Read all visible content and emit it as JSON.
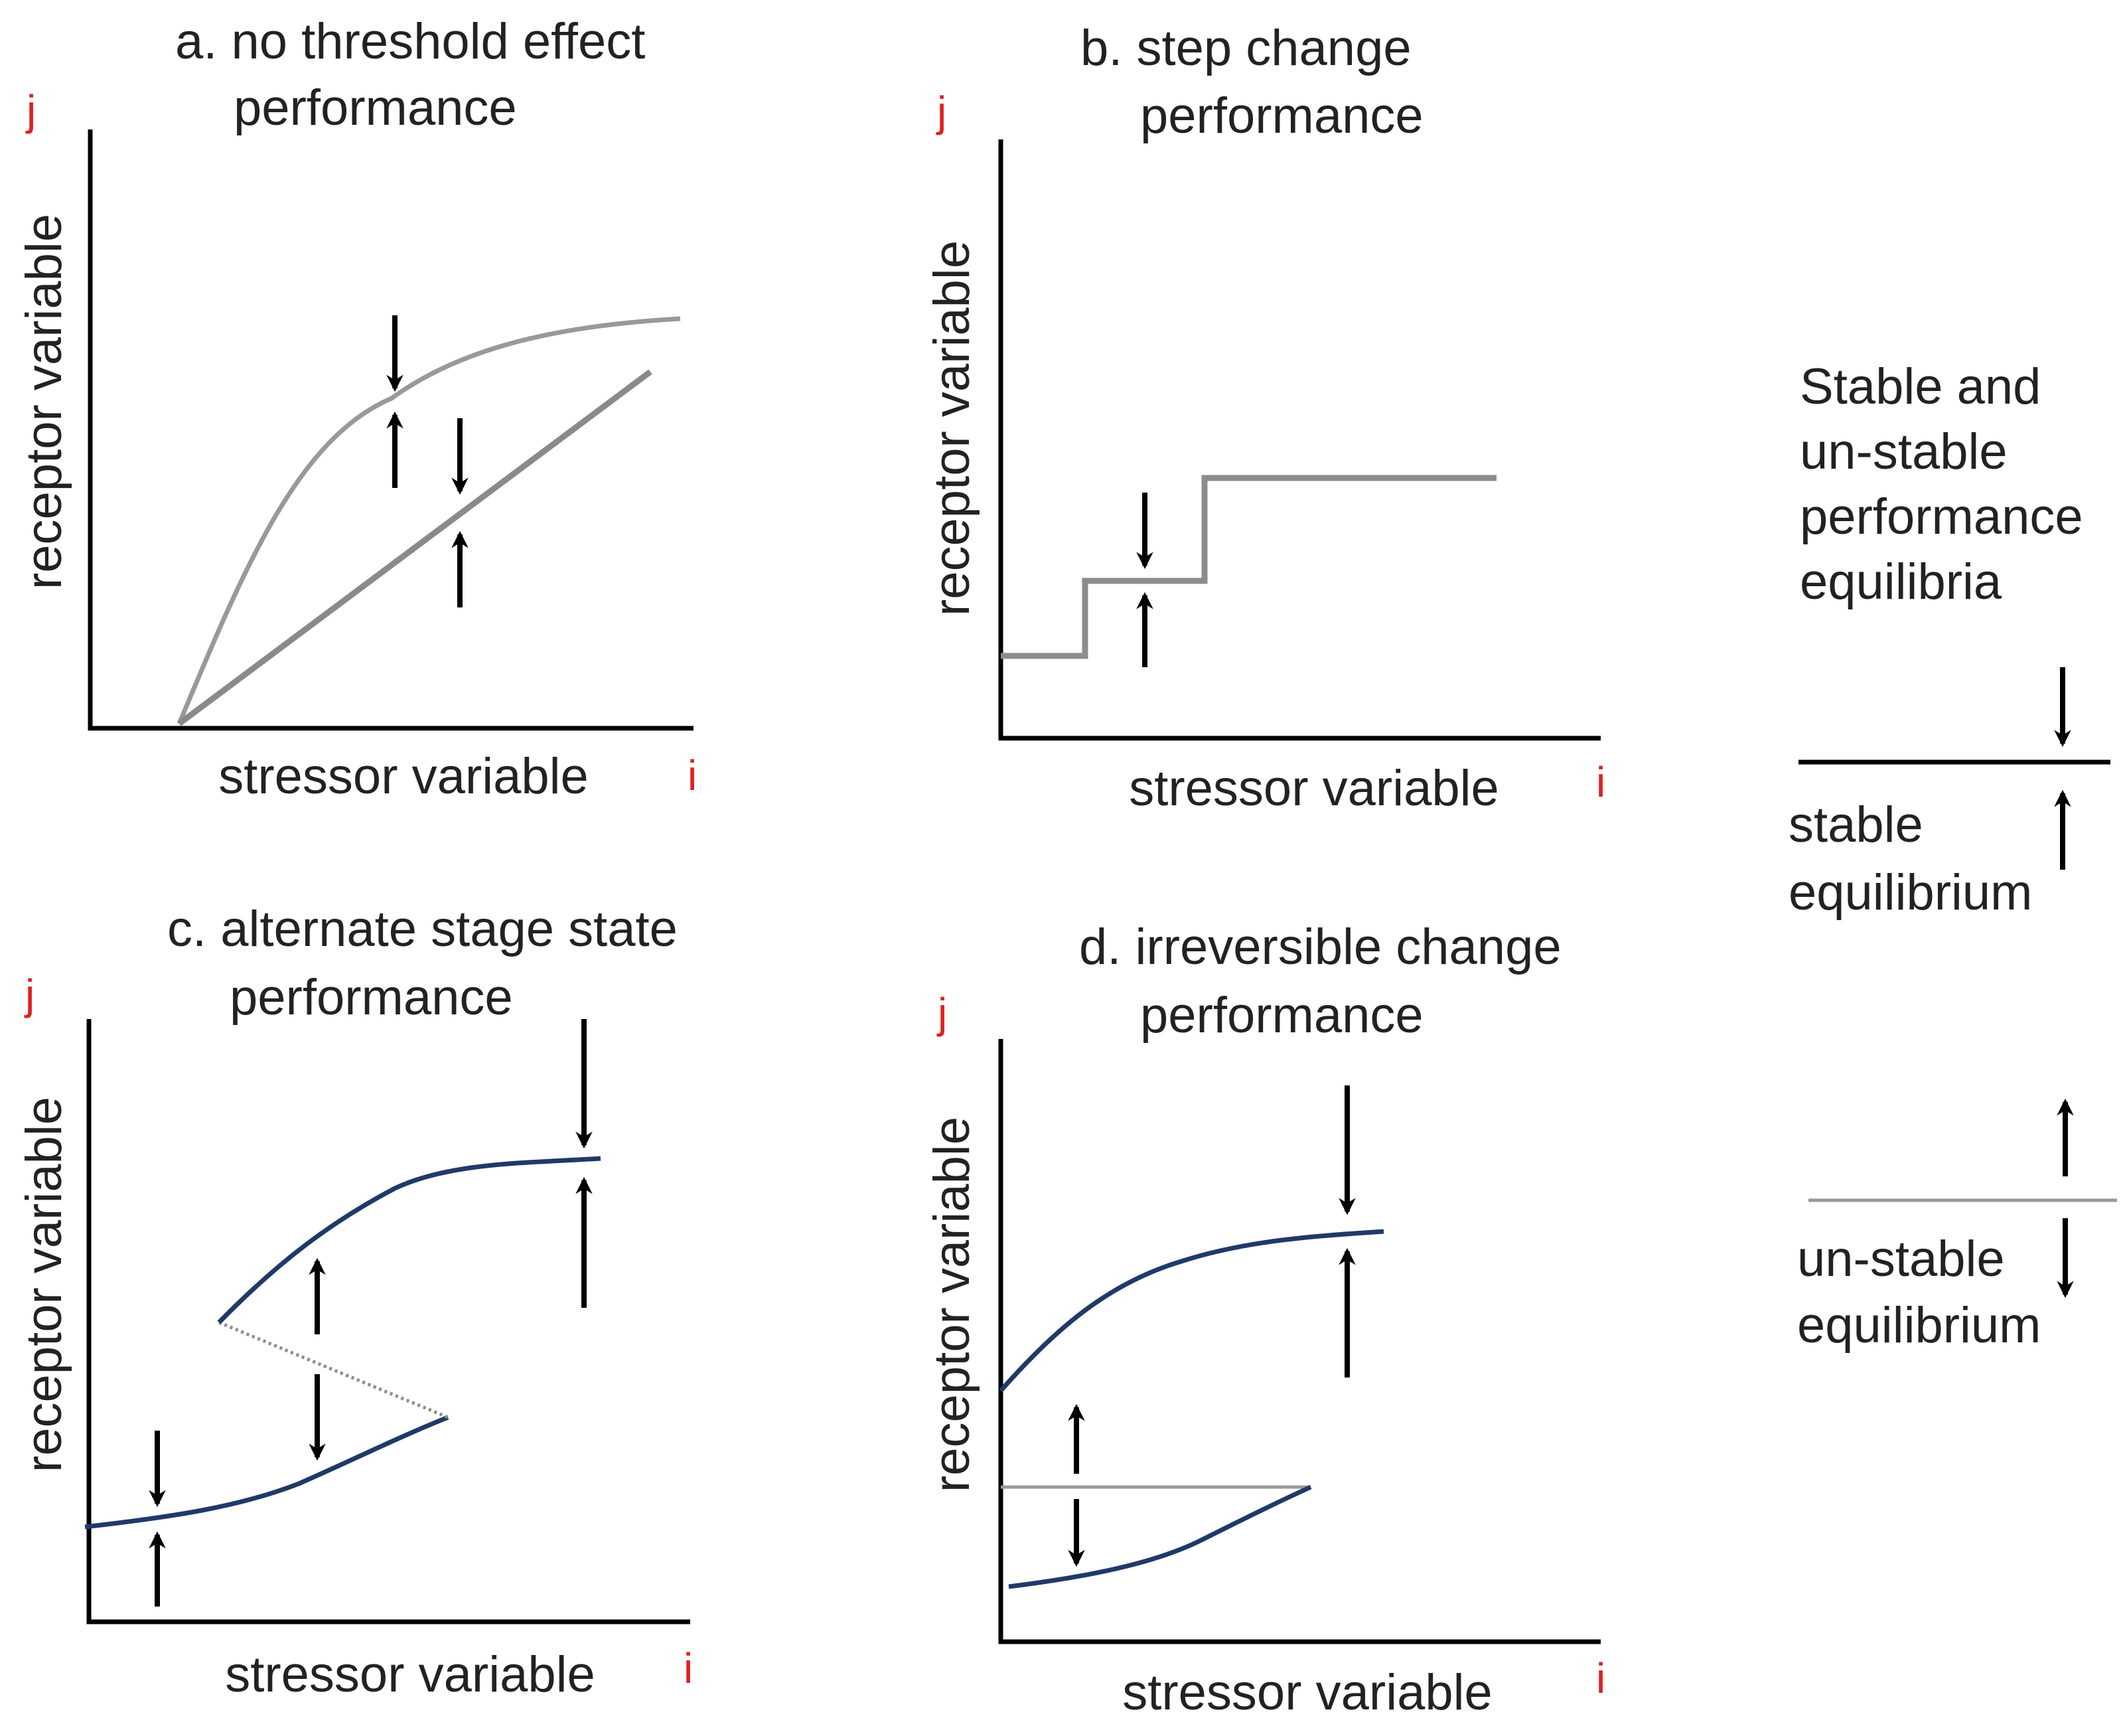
{
  "colors": {
    "axis_letter": "#e02020",
    "text": "#222222",
    "gray_curve": "#999999",
    "blue_curve": "#1f3a68"
  },
  "panels": {
    "a": {
      "title_line1": "a. no threshold effect",
      "title_line2": "performance",
      "y_label": "receptor variable",
      "x_label": "stressor variable",
      "y_letter": "j",
      "x_letter": "i"
    },
    "b": {
      "title_line1": "b. step change",
      "title_line2": "performance",
      "y_label": "receptor variable",
      "x_label": "stressor variable",
      "y_letter": "j",
      "x_letter": "i"
    },
    "c": {
      "title_line1": "c. alternate stage state",
      "title_line2": "performance",
      "y_label": "receptor variable",
      "x_label": "stressor variable",
      "y_letter": "j",
      "x_letter": "i"
    },
    "d": {
      "title_line1": "d. irreversible change",
      "title_line2": "performance",
      "y_label": "receptor variable",
      "x_label": "stressor variable",
      "y_letter": "j",
      "x_letter": "i"
    }
  },
  "legend": {
    "heading_lines": [
      "Stable and",
      "un-stable",
      "performance",
      "equilibria"
    ],
    "stable_lines": [
      "stable",
      "equilibrium"
    ],
    "unstable_lines": [
      "un-stable",
      "equilibrium"
    ]
  }
}
